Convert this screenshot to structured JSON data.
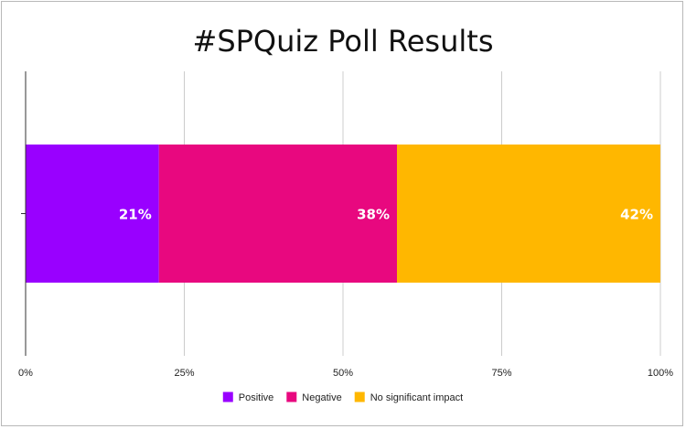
{
  "chart_data": {
    "type": "bar",
    "orientation": "horizontal",
    "stacked": true,
    "title": "#SPQuiz Poll Results",
    "categories": [
      ""
    ],
    "series": [
      {
        "name": "Positive",
        "values": [
          21
        ],
        "label": "21%",
        "color": "#9900ff"
      },
      {
        "name": "Negative",
        "values": [
          37.5
        ],
        "label": "38%",
        "color": "#e8087f"
      },
      {
        "name": "No significant impact",
        "values": [
          41.5
        ],
        "label": "42%",
        "color": "#ffb700"
      }
    ],
    "xlim": [
      0,
      100
    ],
    "xticks": [
      0,
      25,
      50,
      75,
      100
    ],
    "xtick_labels": [
      "0%",
      "25%",
      "50%",
      "75%",
      "100%"
    ],
    "grid": true,
    "legend_position": "bottom"
  }
}
